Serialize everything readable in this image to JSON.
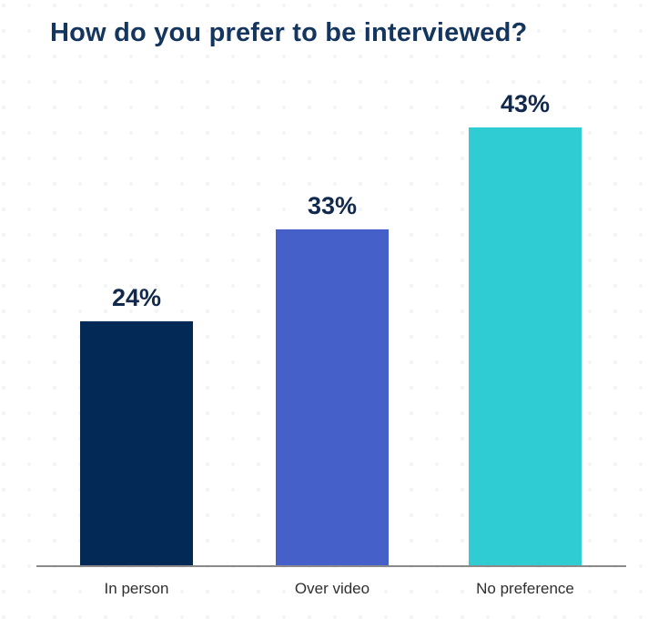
{
  "chart_data": {
    "type": "bar",
    "title": "How do you prefer to be interviewed?",
    "categories": [
      "In person",
      "Over video",
      "No preference"
    ],
    "values": [
      24,
      33,
      43
    ],
    "value_labels": [
      "24%",
      "33%",
      "43%"
    ],
    "colors": [
      "#032a56",
      "#4560c8",
      "#2fccd3"
    ],
    "xlabel": "",
    "ylabel": "",
    "ylim": [
      0,
      50
    ],
    "grid": false,
    "legend": false,
    "value_labels_position": "above-bars",
    "baseline_axis": true
  },
  "colors": {
    "title_text": "#14355e",
    "value_label_text": "#12294e",
    "category_label_text": "#2f2f2f",
    "axis_line": "#8a8a8a",
    "background": "#ffffff"
  }
}
